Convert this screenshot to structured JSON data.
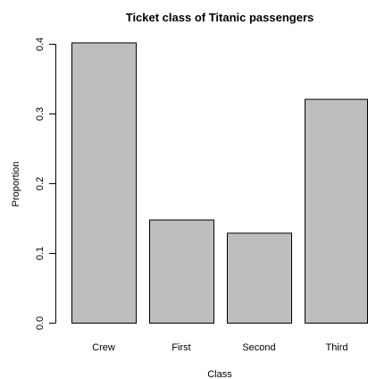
{
  "chart_data": {
    "type": "bar",
    "title": "Ticket class of Titanic passengers",
    "xlabel": "Class",
    "ylabel": "Proportion",
    "categories": [
      "Crew",
      "First",
      "Second",
      "Third"
    ],
    "values": [
      0.402,
      0.148,
      0.129,
      0.321
    ],
    "ylim": [
      0,
      0.4
    ],
    "yticks": [
      "0.0",
      "0.1",
      "0.2",
      "0.3",
      "0.4"
    ],
    "bar_color": "#bebebe",
    "grid": false,
    "legend": "none"
  }
}
